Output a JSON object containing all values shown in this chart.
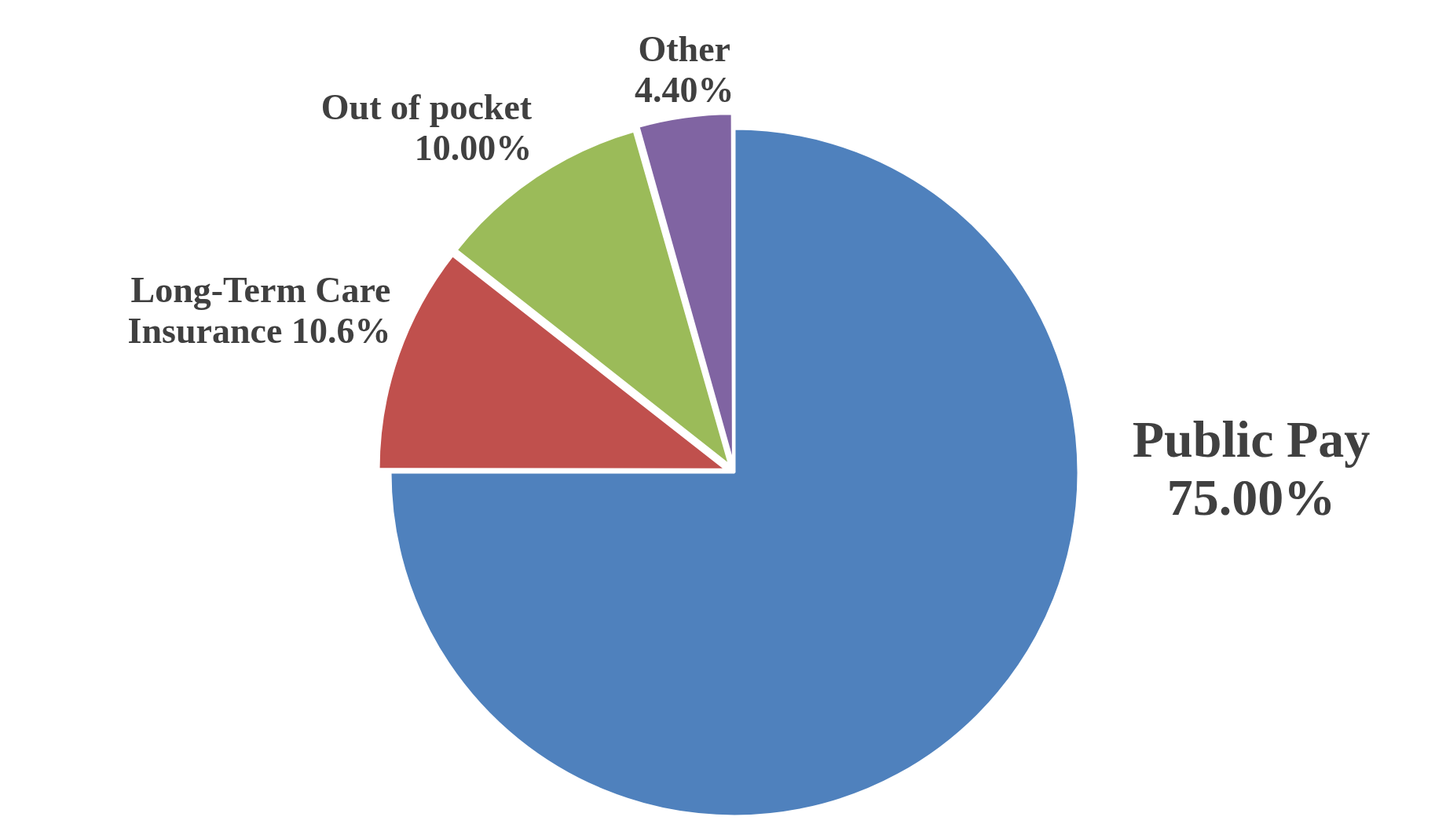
{
  "chart_data": {
    "type": "pie",
    "categories": [
      "Public Pay",
      "Long-Term Care Insurance",
      "Out of pocket",
      "Other"
    ],
    "values": [
      75,
      10.6,
      10,
      4.4
    ],
    "value_labels": [
      "75.00%",
      "10.6%",
      "10.00%",
      "4.40%"
    ],
    "colors": [
      "#4f81bd",
      "#c0504d",
      "#9bbb59",
      "#8064a2"
    ],
    "legend": false
  }
}
